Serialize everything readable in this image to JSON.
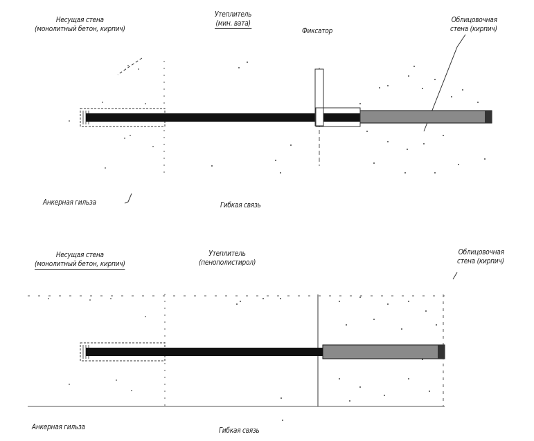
{
  "diagrams": [
    {
      "bearing_wall": "Несущая стена\n(монолитный бетон, кирпич)",
      "insulation": "Утеплитель\n(мин. вата)",
      "fixator": "Фиксатор",
      "facing_wall": "Облицовочная\nстена (кирпич)",
      "anchor_sleeve": "Анкерная гильза",
      "flexible_tie": "Гибкая связь"
    },
    {
      "bearing_wall": "Несущая стена\n(монолитный бетон, кирпич)",
      "insulation": "Утеплитель\n(пенополистирол)",
      "facing_wall": "Облицовочная\nстена (кирпич)",
      "anchor_sleeve": "Анкерная гильза",
      "flexible_tie": "Гибкая связь"
    }
  ],
  "colors": {
    "tie": "#111111",
    "facing_tie": "#7a7a7a",
    "line": "#333333"
  }
}
